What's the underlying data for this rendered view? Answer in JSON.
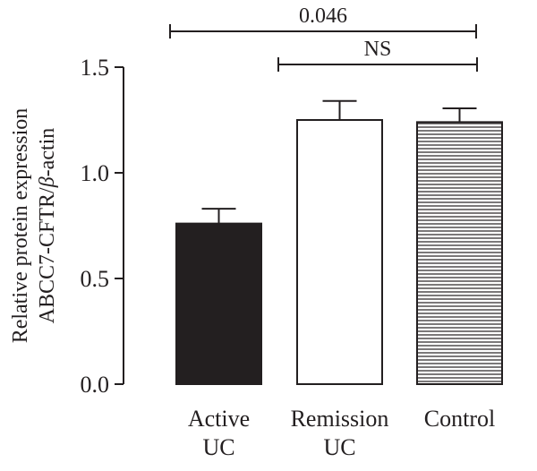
{
  "chart_data": {
    "type": "bar",
    "ylabel_lines": [
      "Relative protein expression",
      "ABCC7-CFTR/",
      "β",
      "-actin"
    ],
    "categories": [
      [
        "Active",
        "UC"
      ],
      [
        "Remission",
        "UC"
      ],
      [
        "Control"
      ]
    ],
    "values": [
      0.76,
      1.25,
      1.24
    ],
    "errors": [
      0.07,
      0.09,
      0.065
    ],
    "fills": [
      "solid",
      "white",
      "hatched"
    ],
    "ylim": [
      0,
      1.5
    ],
    "yticks": [
      "0.0",
      "0.5",
      "1.0",
      "1.5"
    ],
    "ytick_values": [
      0,
      0.5,
      1.0,
      1.5
    ],
    "brackets": [
      {
        "from": 0,
        "to": 2,
        "label": "0.046"
      },
      {
        "from": 1,
        "to": 2,
        "label": "NS"
      }
    ],
    "colors": {
      "ink": "#231f20",
      "bar_dark": "#231f20",
      "bar_light": "#ffffff"
    }
  }
}
